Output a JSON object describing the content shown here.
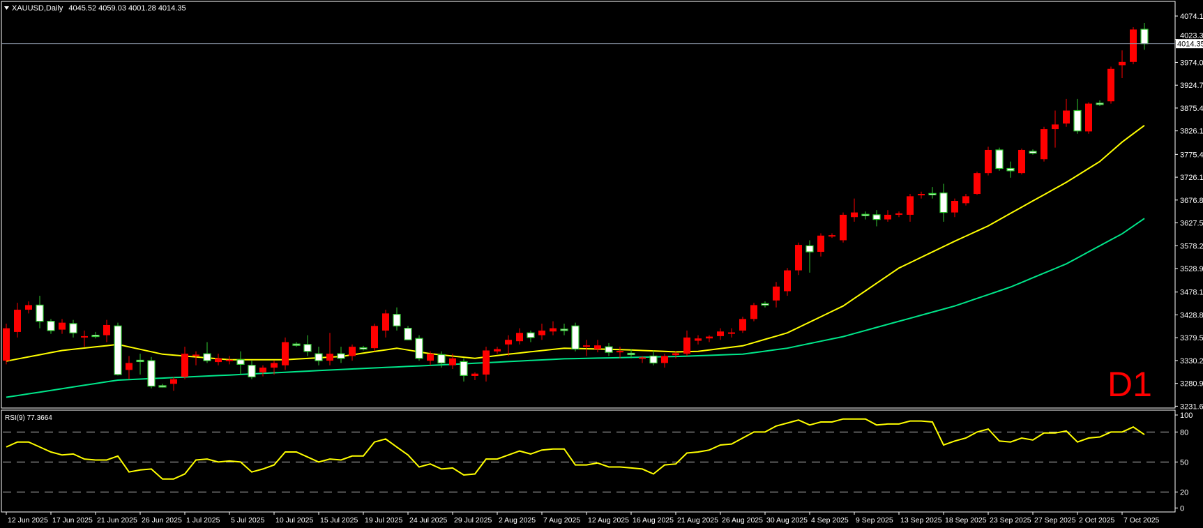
{
  "header": {
    "symbol": "XAUUSD,Daily",
    "ohlc": "4045.52 4059.03 4001.28 4014.35"
  },
  "timeframe_badge": "D1",
  "current_price": "4014.35",
  "colors": {
    "bull_body": "#ff0000",
    "bear_body": "#ffffff",
    "bear_outline": "#32cd32",
    "ma_fast": "#ffff00",
    "ma_slow": "#00e68a",
    "rsi": "#ffff00",
    "price_line": "#8a94a6",
    "badge": "#ff0000"
  },
  "chart_data": [
    {
      "type": "candlestick",
      "title": "XAUUSD,Daily",
      "price_ticks": [
        "4074.10",
        "4023.35",
        "3974.05",
        "3924.75",
        "3875.45",
        "3826.15",
        "3775.40",
        "3726.10",
        "3676.80",
        "3627.50",
        "3578.20",
        "3528.90",
        "3478.15",
        "3428.85",
        "3379.55",
        "3330.25",
        "3280.95",
        "3231.65"
      ],
      "ylim": [
        3227.8,
        4108.7
      ],
      "date_labels": [
        "12 Jun 2025",
        "17 Jun 2025",
        "21 Jun 2025",
        "26 Jun 2025",
        "1 Jul 2025",
        "5 Jul 2025",
        "10 Jul 2025",
        "15 Jul 2025",
        "19 Jul 2025",
        "24 Jul 2025",
        "29 Jul 2025",
        "2 Aug 2025",
        "7 Aug 2025",
        "12 Aug 2025",
        "16 Aug 2025",
        "21 Aug 2025",
        "26 Aug 2025",
        "30 Aug 2025",
        "4 Sep 2025",
        "9 Sep 2025",
        "13 Sep 2025",
        "18 Sep 2025",
        "23 Sep 2025",
        "27 Sep 2025",
        "2 Oct 2025",
        "7 Oct 2025"
      ],
      "bars_per_date_label": 4,
      "ohlc": [
        [
          3330,
          3410,
          3322,
          3400
        ],
        [
          3392,
          3455,
          3380,
          3440
        ],
        [
          3440,
          3458,
          3432,
          3450
        ],
        [
          3450,
          3470,
          3400,
          3415
        ],
        [
          3415,
          3420,
          3388,
          3395
        ],
        [
          3397,
          3420,
          3388,
          3412
        ],
        [
          3410,
          3418,
          3380,
          3390
        ],
        [
          3381,
          3395,
          3360,
          3383
        ],
        [
          3385,
          3392,
          3378,
          3384
        ],
        [
          3385,
          3418,
          3370,
          3407
        ],
        [
          3405,
          3412,
          3298,
          3300
        ],
        [
          3310,
          3340,
          3290,
          3325
        ],
        [
          3331,
          3345,
          3300,
          3330
        ],
        [
          3330,
          3338,
          3270,
          3275
        ],
        [
          3276,
          3280,
          3272,
          3275
        ],
        [
          3280,
          3295,
          3265,
          3290
        ],
        [
          3295,
          3360,
          3290,
          3345
        ],
        [
          3341,
          3350,
          3320,
          3343
        ],
        [
          3345,
          3370,
          3325,
          3330
        ],
        [
          3327,
          3345,
          3320,
          3335
        ],
        [
          3330,
          3340,
          3322,
          3332
        ],
        [
          3332,
          3350,
          3300,
          3322
        ],
        [
          3320,
          3330,
          3290,
          3295
        ],
        [
          3305,
          3320,
          3296,
          3315
        ],
        [
          3315,
          3330,
          3300,
          3325
        ],
        [
          3320,
          3380,
          3310,
          3370
        ],
        [
          3366,
          3370,
          3360,
          3365
        ],
        [
          3365,
          3385,
          3340,
          3350
        ],
        [
          3345,
          3360,
          3320,
          3330
        ],
        [
          3330,
          3390,
          3320,
          3345
        ],
        [
          3345,
          3360,
          3325,
          3335
        ],
        [
          3340,
          3365,
          3330,
          3360
        ],
        [
          3358,
          3362,
          3352,
          3357
        ],
        [
          3357,
          3410,
          3350,
          3405
        ],
        [
          3395,
          3440,
          3380,
          3432
        ],
        [
          3430,
          3445,
          3395,
          3405
        ],
        [
          3400,
          3405,
          3375,
          3375
        ],
        [
          3378,
          3385,
          3330,
          3335
        ],
        [
          3330,
          3350,
          3320,
          3345
        ],
        [
          3343,
          3350,
          3315,
          3325
        ],
        [
          3320,
          3345,
          3312,
          3335
        ],
        [
          3328,
          3335,
          3285,
          3298
        ],
        [
          3297,
          3305,
          3288,
          3302
        ],
        [
          3300,
          3360,
          3285,
          3352
        ],
        [
          3350,
          3360,
          3345,
          3355
        ],
        [
          3365,
          3385,
          3340,
          3375
        ],
        [
          3372,
          3400,
          3365,
          3390
        ],
        [
          3390,
          3395,
          3370,
          3380
        ],
        [
          3385,
          3410,
          3375,
          3395
        ],
        [
          3393,
          3415,
          3385,
          3400
        ],
        [
          3398,
          3410,
          3385,
          3397
        ],
        [
          3405,
          3412,
          3350,
          3355
        ],
        [
          3361,
          3375,
          3340,
          3363
        ],
        [
          3355,
          3375,
          3348,
          3363
        ],
        [
          3360,
          3368,
          3340,
          3348
        ],
        [
          3349,
          3360,
          3335,
          3351
        ],
        [
          3346,
          3355,
          3335,
          3343
        ],
        [
          3334,
          3340,
          3325,
          3337
        ],
        [
          3340,
          3352,
          3320,
          3325
        ],
        [
          3325,
          3345,
          3315,
          3340
        ],
        [
          3342,
          3350,
          3335,
          3346
        ],
        [
          3345,
          3395,
          3340,
          3380
        ],
        [
          3373,
          3385,
          3365,
          3378
        ],
        [
          3378,
          3385,
          3370,
          3382
        ],
        [
          3383,
          3400,
          3375,
          3393
        ],
        [
          3389,
          3400,
          3380,
          3391
        ],
        [
          3395,
          3425,
          3390,
          3420
        ],
        [
          3420,
          3455,
          3415,
          3450
        ],
        [
          3453,
          3458,
          3445,
          3452
        ],
        [
          3460,
          3500,
          3445,
          3490
        ],
        [
          3480,
          3530,
          3470,
          3525
        ],
        [
          3525,
          3585,
          3515,
          3580
        ],
        [
          3578,
          3590,
          3520,
          3565
        ],
        [
          3565,
          3605,
          3555,
          3600
        ],
        [
          3598,
          3605,
          3595,
          3601
        ],
        [
          3590,
          3650,
          3585,
          3645
        ],
        [
          3640,
          3680,
          3630,
          3650
        ],
        [
          3646,
          3652,
          3635,
          3645
        ],
        [
          3645,
          3655,
          3620,
          3635
        ],
        [
          3635,
          3655,
          3630,
          3645
        ],
        [
          3646,
          3652,
          3640,
          3648
        ],
        [
          3645,
          3690,
          3630,
          3685
        ],
        [
          3688,
          3695,
          3680,
          3690
        ],
        [
          3691,
          3705,
          3680,
          3690
        ],
        [
          3692,
          3712,
          3630,
          3650
        ],
        [
          3650,
          3680,
          3640,
          3675
        ],
        [
          3670,
          3690,
          3665,
          3685
        ],
        [
          3690,
          3738,
          3688,
          3735
        ],
        [
          3735,
          3792,
          3730,
          3785
        ],
        [
          3785,
          3790,
          3740,
          3745
        ],
        [
          3745,
          3760,
          3725,
          3740
        ],
        [
          3735,
          3788,
          3732,
          3785
        ],
        [
          3782,
          3786,
          3775,
          3778
        ],
        [
          3765,
          3835,
          3760,
          3830
        ],
        [
          3830,
          3870,
          3790,
          3840
        ],
        [
          3842,
          3895,
          3835,
          3870
        ],
        [
          3870,
          3895,
          3820,
          3826
        ],
        [
          3825,
          3888,
          3820,
          3885
        ],
        [
          3886,
          3892,
          3880,
          3885
        ],
        [
          3890,
          3965,
          3885,
          3960
        ],
        [
          3968,
          4000,
          3940,
          3975
        ],
        [
          3975,
          4050,
          3970,
          4045
        ],
        [
          4045.52,
          4059.03,
          4001.28,
          4014.35
        ]
      ],
      "ma_fast_anchors": [
        [
          0,
          3329
        ],
        [
          5,
          3352
        ],
        [
          10,
          3365
        ],
        [
          14,
          3344
        ],
        [
          20,
          3332
        ],
        [
          25,
          3332
        ],
        [
          30,
          3339
        ],
        [
          35,
          3357
        ],
        [
          38,
          3345
        ],
        [
          42,
          3335
        ],
        [
          45,
          3344
        ],
        [
          50,
          3357
        ],
        [
          55,
          3354
        ],
        [
          60,
          3349
        ],
        [
          62,
          3350
        ],
        [
          66,
          3362
        ],
        [
          70,
          3390
        ],
        [
          75,
          3448
        ],
        [
          80,
          3530
        ],
        [
          85,
          3588
        ],
        [
          88,
          3621
        ],
        [
          92,
          3675
        ],
        [
          95,
          3715
        ],
        [
          98,
          3760
        ],
        [
          100,
          3802
        ],
        [
          102,
          3838
        ]
      ],
      "ma_slow_anchors": [
        [
          0,
          3251
        ],
        [
          10,
          3288
        ],
        [
          20,
          3299
        ],
        [
          30,
          3311
        ],
        [
          40,
          3322
        ],
        [
          50,
          3334
        ],
        [
          60,
          3339
        ],
        [
          66,
          3344
        ],
        [
          70,
          3357
        ],
        [
          75,
          3382
        ],
        [
          80,
          3415
        ],
        [
          85,
          3448
        ],
        [
          90,
          3489
        ],
        [
          95,
          3539
        ],
        [
          100,
          3604
        ],
        [
          102,
          3637
        ]
      ]
    },
    {
      "type": "line",
      "title": "RSI(9) 77.3664",
      "ylim": [
        0,
        100
      ],
      "y_ticks": [
        "100",
        "80",
        "50",
        "20",
        "0"
      ],
      "levels": [
        80,
        50,
        20
      ],
      "values": [
        65,
        70,
        70,
        65,
        60,
        57,
        58,
        53,
        52,
        52,
        56,
        40,
        42,
        43,
        33,
        33,
        38,
        52,
        53,
        50,
        51,
        50,
        40,
        43,
        47,
        60,
        60,
        55,
        50,
        53,
        52,
        56,
        56,
        70,
        73,
        65,
        57,
        45,
        48,
        43,
        44,
        37,
        38,
        53,
        53,
        57,
        61,
        58,
        62,
        63,
        63,
        47,
        47,
        49,
        45,
        45,
        44,
        43,
        38,
        47,
        48,
        59,
        60,
        62,
        67,
        68,
        74,
        80,
        80,
        86,
        89,
        92,
        87,
        90,
        90,
        93,
        93,
        93,
        87,
        88,
        88,
        91,
        91,
        90,
        67,
        71,
        74,
        80,
        83,
        71,
        70,
        74,
        72,
        79,
        79,
        81,
        70,
        74,
        75,
        80,
        80,
        85,
        77.37
      ]
    }
  ]
}
